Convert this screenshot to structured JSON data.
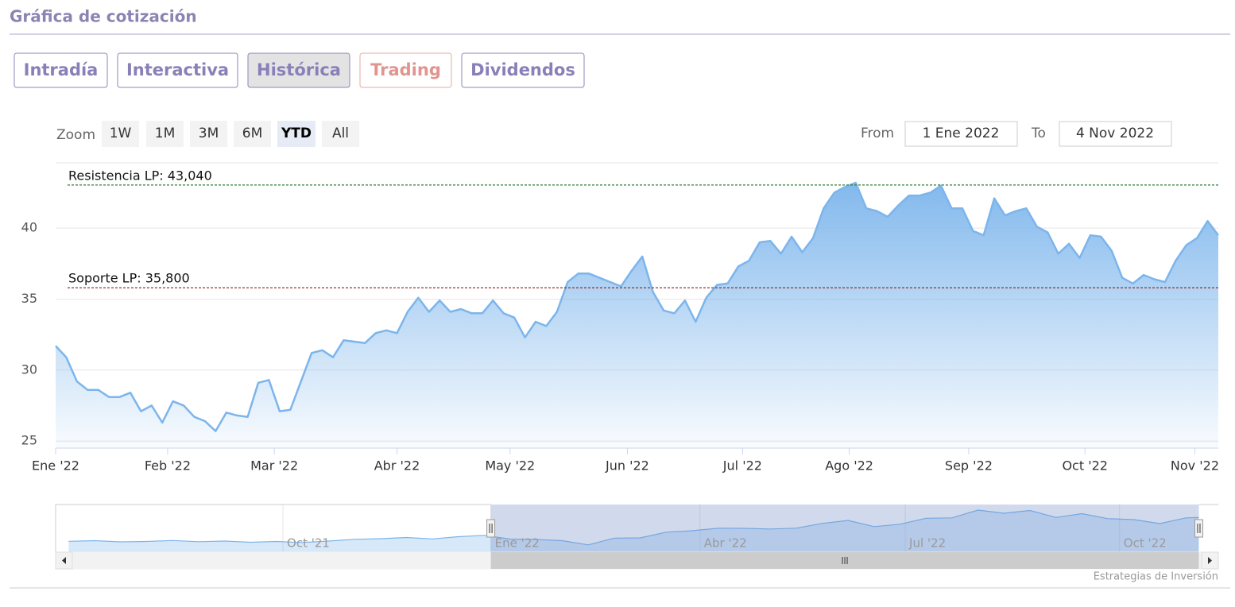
{
  "header": {
    "title": "Gráfica de cotización"
  },
  "tabs": [
    {
      "label": "Intradía",
      "color": "#8a80b8"
    },
    {
      "label": "Interactiva",
      "color": "#8a80b8"
    },
    {
      "label": "Histórica",
      "color": "#8a80b8"
    },
    {
      "label": "Trading",
      "color": "#e0958f"
    },
    {
      "label": "Dividendos",
      "color": "#8a80b8"
    }
  ],
  "active_tab": 2,
  "zoom": {
    "label": "Zoom",
    "buttons": [
      "1W",
      "1M",
      "3M",
      "6M",
      "YTD",
      "All"
    ],
    "active": 4
  },
  "range": {
    "from_label": "From",
    "from": "1 Ene 2022",
    "to_label": "To",
    "to": "4 Nov 2022"
  },
  "credit": "Estrategias de Inversión",
  "chart_data": {
    "type": "area",
    "series": [
      {
        "color": "#7cb5ec",
        "values": [
          31.7,
          30.9,
          29.2,
          28.6,
          28.6,
          28.1,
          28.1,
          28.4,
          27.1,
          27.5,
          26.3,
          27.8,
          27.5,
          26.7,
          26.4,
          25.7,
          27.0,
          26.8,
          26.7,
          29.1,
          29.3,
          27.1,
          27.2,
          29.2,
          31.2,
          31.4,
          30.9,
          32.1,
          32.0,
          31.9,
          32.6,
          32.8,
          32.6,
          34.1,
          35.1,
          34.1,
          34.9,
          34.1,
          34.3,
          34.0,
          34.0,
          34.9,
          34.0,
          33.7,
          32.3,
          33.4,
          33.1,
          34.1,
          36.2,
          36.8,
          36.8,
          36.5,
          36.2,
          35.9,
          37.0,
          38.0,
          35.5,
          34.2,
          34.0,
          34.9,
          33.4,
          35.1,
          36.0,
          36.1,
          37.3,
          37.7,
          39.0,
          39.1,
          38.2,
          39.4,
          38.3,
          39.3,
          41.4,
          42.5,
          42.9,
          43.2,
          41.4,
          41.2,
          40.8,
          41.6,
          42.3,
          42.3,
          42.5,
          43.0,
          41.4,
          41.4,
          39.8,
          39.5,
          42.1,
          40.9,
          41.2,
          41.4,
          40.1,
          39.7,
          38.2,
          38.9,
          37.9,
          39.5,
          39.4,
          38.4,
          36.5,
          36.1,
          36.7,
          36.4,
          36.2,
          37.7,
          38.8,
          39.3,
          40.5,
          39.5
        ]
      }
    ],
    "xlim": [
      0,
      109
    ],
    "xticks": [
      {
        "value": 0,
        "label": "Ene '22"
      },
      {
        "value": 10.5,
        "label": "Feb '22"
      },
      {
        "value": 20.5,
        "label": "Mar '22"
      },
      {
        "value": 32,
        "label": "Abr '22"
      },
      {
        "value": 42.6,
        "label": "May '22"
      },
      {
        "value": 53.6,
        "label": "Jun '22"
      },
      {
        "value": 64.4,
        "label": "Jul '22"
      },
      {
        "value": 74.4,
        "label": "Ago '22"
      },
      {
        "value": 85.6,
        "label": "Sep '22"
      },
      {
        "value": 96.5,
        "label": "Oct '22"
      },
      {
        "value": 106.8,
        "label": "Nov '22"
      }
    ],
    "ylim": [
      24.5,
      44.6
    ],
    "yticks": [
      25,
      30,
      35,
      40
    ],
    "grid": true,
    "plot_lines": [
      {
        "value": 43.04,
        "label": "Resistencia LP: 43,040",
        "color": "#2e7d32"
      },
      {
        "value": 35.8,
        "label": "Soporte LP: 35,800",
        "color": "#8b1a1a"
      }
    ],
    "navigator": {
      "color": "#7cb5ec",
      "x": [
        -65,
        -61,
        -57,
        -53,
        -49,
        -45,
        -41,
        -37,
        -33,
        -29,
        -25,
        -21,
        -17,
        -13,
        -9,
        -5,
        -1,
        3,
        7,
        11,
        15,
        19,
        23,
        27,
        31,
        35,
        39,
        43,
        47,
        51,
        55,
        59,
        63,
        67,
        71,
        75,
        79,
        83,
        87,
        91,
        95,
        99,
        103,
        107,
        109
      ],
      "values": [
        27.5,
        27.8,
        27.2,
        27.4,
        27.9,
        27.3,
        27.6,
        27.0,
        27.4,
        26.9,
        27.6,
        28.5,
        28.8,
        29.4,
        28.7,
        29.8,
        30.5,
        28.6,
        28.4,
        27.8,
        25.7,
        29.1,
        29.2,
        32.1,
        32.8,
        34.1,
        34.0,
        33.7,
        34.1,
        36.5,
        38.0,
        34.9,
        36.1,
        39.1,
        39.3,
        43.2,
        41.6,
        43.0,
        39.5,
        41.4,
        38.9,
        38.4,
        36.4,
        39.3,
        39.5
      ],
      "xlim": [
        -67,
        112
      ],
      "ylim": [
        22,
        46
      ],
      "xticks": [
        {
          "value": -32,
          "label": "Oct '21"
        },
        {
          "value": 0,
          "label": "Ene '22"
        },
        {
          "value": 32.2,
          "label": "Abr '22"
        },
        {
          "value": 63.8,
          "label": "Jul '22"
        },
        {
          "value": 96.8,
          "label": "Oct '22"
        }
      ]
    }
  }
}
